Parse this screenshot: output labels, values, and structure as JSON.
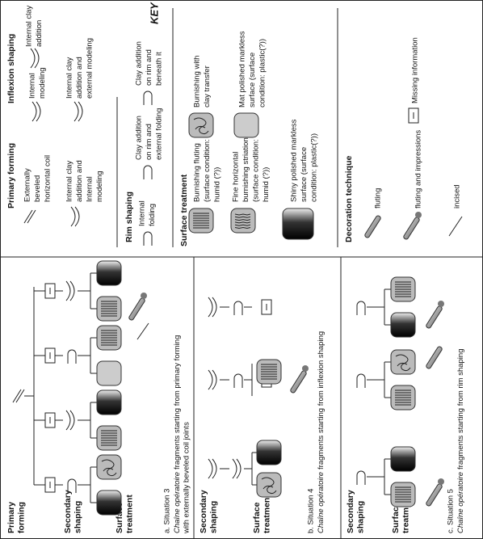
{
  "key": {
    "title": "KEY",
    "primary_forming": {
      "heading": "Primary forming",
      "items": [
        [
          "Externally",
          "beveled",
          "horizontal coil"
        ],
        [
          "Internal clay",
          "addition and",
          "Internal",
          "modeling"
        ]
      ]
    },
    "inflexion_shaping": {
      "heading": "Inflexion shaping",
      "items": [
        [
          "Internal",
          "modeling"
        ],
        [
          "Internal clay",
          "addition and",
          "external modeling"
        ],
        [
          "Internal clay",
          "addition"
        ]
      ]
    },
    "rim_shaping": {
      "heading": "Rim shaping",
      "items": [
        [
          "Internal",
          "folding"
        ],
        [
          "Clay addition",
          "on rim and",
          "external folding"
        ],
        [
          "Clay addition",
          "on rim and",
          "beneath it"
        ]
      ]
    },
    "surface_treatment": {
      "heading": "Surface treatment",
      "items": [
        [
          "Burnishing fluting",
          "(surface condition:",
          "humid (?))"
        ],
        [
          "Burnishing with",
          "clay transfer"
        ],
        [
          "Fine horizontal",
          "burnishing striations",
          "(surface condition:",
          "humid (?))"
        ],
        [
          "Mat polished markless",
          "surface (surface",
          "condition: plastic(?))"
        ],
        [
          "Shiny polished markless",
          "surface (surface",
          "condition: plastic(?))"
        ]
      ]
    },
    "decoration_technique": {
      "heading": "Decoration technique",
      "items": [
        "fluting",
        "fluting and impressions",
        "incised"
      ]
    },
    "missing_information": "Missing information"
  },
  "panels": [
    {
      "row_labels": [
        [
          "Primary",
          "forming"
        ],
        [
          "Secondary",
          "shaping"
        ],
        [
          "Surface",
          "treatment"
        ]
      ],
      "caption": "a. Situation 3",
      "subtitle": {
        "italic": "Chaîne opératoire",
        "text": "fragments starting from primary forming"
      },
      "subtitle_line2": "with externally beveled coil joints"
    },
    {
      "row_labels": [
        [
          "Secondary",
          "shaping"
        ],
        [
          "Surface",
          "treatment"
        ]
      ],
      "caption": "b. Situation 4",
      "subtitle": {
        "italic": "Chaîne opératoire",
        "text": "fragments starting from inflexion shaping"
      }
    },
    {
      "row_labels": [
        [
          "Secondary",
          "shaping"
        ],
        [
          "Surface",
          "treatment"
        ]
      ],
      "caption": "c. Situation 5",
      "subtitle": {
        "italic": "Chaîne opératoire",
        "text": "fragments starting from rim shaping"
      }
    }
  ]
}
